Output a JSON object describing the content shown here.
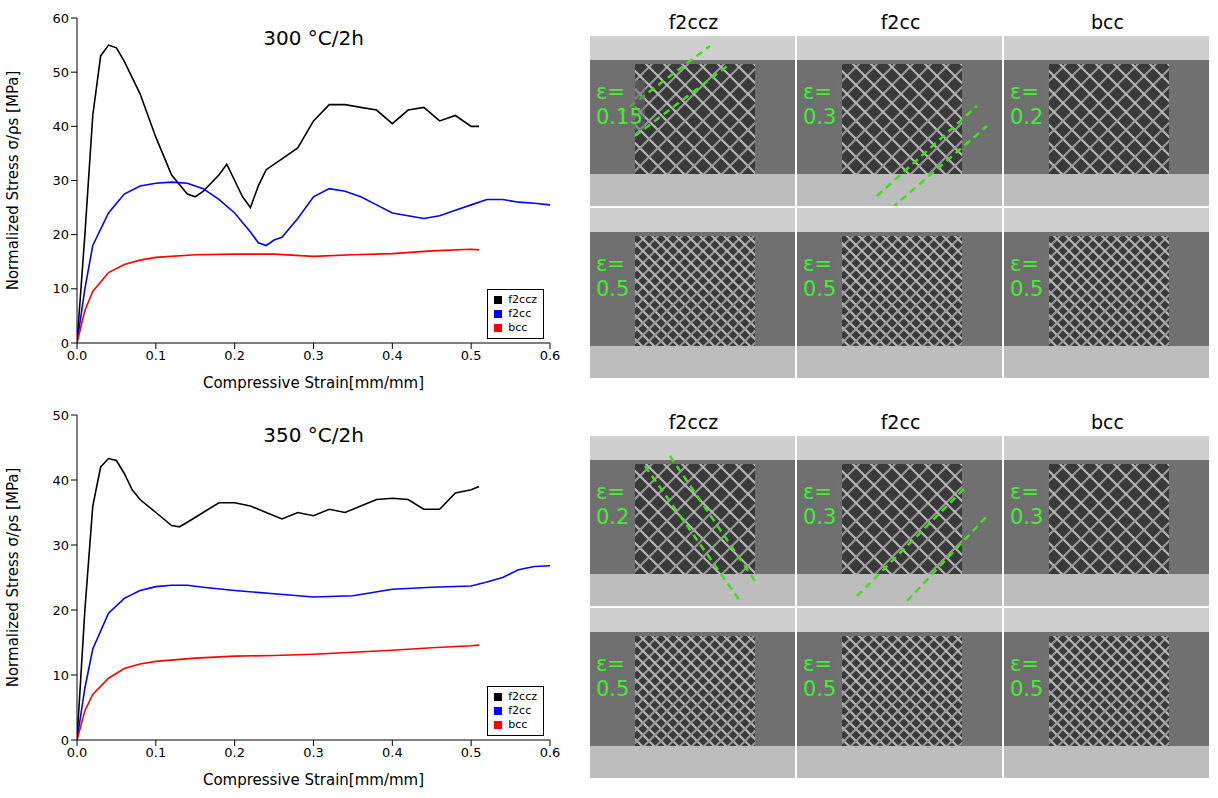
{
  "chart_data": [
    {
      "type": "line",
      "title": "300 °C/2h",
      "x_label": "Compressive Strain[mm/mm]",
      "y_label": "Normalized Stress σ/ρs [MPa]",
      "xlim": [
        0,
        0.6
      ],
      "xticks": [
        {
          "value": 0,
          "label": "0.0"
        },
        0.1,
        0.2,
        0.3,
        0.4,
        0.5,
        0.6
      ],
      "ylim": [
        0,
        60
      ],
      "yticks": [
        0,
        10,
        20,
        30,
        40,
        50,
        60
      ],
      "grid": false,
      "legend": "lower right",
      "marker": "none",
      "series": [
        {
          "name": "f2ccz",
          "color": "#000000",
          "x": [
            0,
            0.01,
            0.02,
            0.03,
            0.04,
            0.05,
            0.06,
            0.08,
            0.1,
            0.12,
            0.14,
            0.15,
            0.16,
            0.18,
            0.19,
            0.2,
            0.21,
            0.22,
            0.23,
            0.24,
            0.26,
            0.28,
            0.3,
            0.32,
            0.34,
            0.36,
            0.38,
            0.4,
            0.42,
            0.44,
            0.46,
            0.48,
            0.5,
            0.51
          ],
          "values": [
            0,
            20,
            42,
            53,
            55,
            54.5,
            52,
            46,
            38,
            31,
            27.5,
            27,
            28,
            31,
            33,
            30,
            27,
            25,
            29,
            32,
            34,
            36,
            41,
            44,
            44,
            43.5,
            43,
            40.5,
            43,
            43.5,
            41,
            42,
            40,
            40
          ]
        },
        {
          "name": "f2cc",
          "color": "#0000ff",
          "x": [
            0,
            0.01,
            0.02,
            0.04,
            0.06,
            0.08,
            0.1,
            0.12,
            0.14,
            0.16,
            0.18,
            0.2,
            0.22,
            0.23,
            0.24,
            0.25,
            0.26,
            0.28,
            0.3,
            0.32,
            0.34,
            0.36,
            0.38,
            0.4,
            0.42,
            0.44,
            0.46,
            0.48,
            0.5,
            0.52,
            0.54,
            0.56,
            0.58,
            0.6
          ],
          "values": [
            0,
            10,
            18,
            24,
            27.5,
            29,
            29.5,
            29.7,
            29.5,
            28.5,
            26.5,
            24,
            20.5,
            18.5,
            18,
            19,
            19.5,
            23,
            27,
            28.5,
            28,
            27,
            25.5,
            24,
            23.5,
            23,
            23.5,
            24.5,
            25.5,
            26.5,
            26.5,
            26,
            25.8,
            25.5
          ]
        },
        {
          "name": "bcc",
          "color": "#ff0000",
          "x": [
            0,
            0.01,
            0.02,
            0.04,
            0.06,
            0.08,
            0.1,
            0.15,
            0.2,
            0.25,
            0.3,
            0.35,
            0.4,
            0.45,
            0.5,
            0.51
          ],
          "values": [
            0,
            6,
            9.5,
            13,
            14.5,
            15.3,
            15.8,
            16.3,
            16.4,
            16.4,
            16,
            16.3,
            16.5,
            17,
            17.3,
            17.2
          ]
        }
      ]
    },
    {
      "type": "line",
      "title": "350 °C/2h",
      "x_label": "Compressive Strain[mm/mm]",
      "y_label": "Normalized Stress σ/ρs [MPa]",
      "xlim": [
        0,
        0.6
      ],
      "xticks": [
        {
          "value": 0,
          "label": "0.0"
        },
        0.1,
        0.2,
        0.3,
        0.4,
        0.5,
        0.6
      ],
      "ylim": [
        0,
        50
      ],
      "yticks": [
        0,
        10,
        20,
        30,
        40,
        50
      ],
      "grid": false,
      "legend": "lower right",
      "marker": "none",
      "series": [
        {
          "name": "f2ccz",
          "color": "#000000",
          "x": [
            0,
            0.01,
            0.02,
            0.03,
            0.04,
            0.05,
            0.06,
            0.07,
            0.08,
            0.1,
            0.12,
            0.13,
            0.14,
            0.16,
            0.18,
            0.2,
            0.22,
            0.24,
            0.26,
            0.28,
            0.3,
            0.32,
            0.34,
            0.36,
            0.38,
            0.4,
            0.42,
            0.44,
            0.46,
            0.48,
            0.5,
            0.51
          ],
          "values": [
            0,
            20,
            36,
            42,
            43.3,
            43,
            41,
            38.5,
            37,
            35,
            33,
            32.8,
            33.5,
            35,
            36.5,
            36.5,
            36,
            35,
            34,
            35,
            34.5,
            35.5,
            35,
            36,
            37,
            37.2,
            37,
            35.5,
            35.5,
            38,
            38.5,
            39
          ]
        },
        {
          "name": "f2cc",
          "color": "#0000ff",
          "x": [
            0,
            0.01,
            0.02,
            0.04,
            0.06,
            0.08,
            0.1,
            0.12,
            0.14,
            0.16,
            0.2,
            0.25,
            0.3,
            0.35,
            0.4,
            0.45,
            0.5,
            0.52,
            0.54,
            0.56,
            0.58,
            0.6
          ],
          "values": [
            0,
            8,
            14,
            19.5,
            21.8,
            23,
            23.6,
            23.8,
            23.8,
            23.5,
            23,
            22.5,
            22,
            22.2,
            23.2,
            23.5,
            23.7,
            24.3,
            25,
            26.2,
            26.7,
            26.8
          ]
        },
        {
          "name": "bcc",
          "color": "#ff0000",
          "x": [
            0,
            0.01,
            0.02,
            0.04,
            0.06,
            0.08,
            0.1,
            0.15,
            0.2,
            0.25,
            0.3,
            0.35,
            0.4,
            0.45,
            0.5,
            0.51
          ],
          "values": [
            0,
            4.5,
            7,
            9.5,
            11,
            11.7,
            12.1,
            12.6,
            12.9,
            13,
            13.2,
            13.5,
            13.8,
            14.2,
            14.5,
            14.6
          ]
        }
      ]
    }
  ],
  "photos": [
    {
      "columns": [
        "f2ccz",
        "f2cc",
        "bcc"
      ],
      "strains": [
        [
          "ε= 0.15",
          "ε= 0.3",
          "ε= 0.2"
        ],
        [
          "ε= 0.5",
          "ε= 0.5",
          "ε= 0.5"
        ]
      ]
    },
    {
      "columns": [
        "f2ccz",
        "f2cc",
        "bcc"
      ],
      "strains": [
        [
          "ε= 0.2",
          "ε= 0.3",
          "ε= 0.3"
        ],
        [
          "ε= 0.5",
          "ε= 0.5",
          "ε= 0.5"
        ]
      ]
    }
  ]
}
